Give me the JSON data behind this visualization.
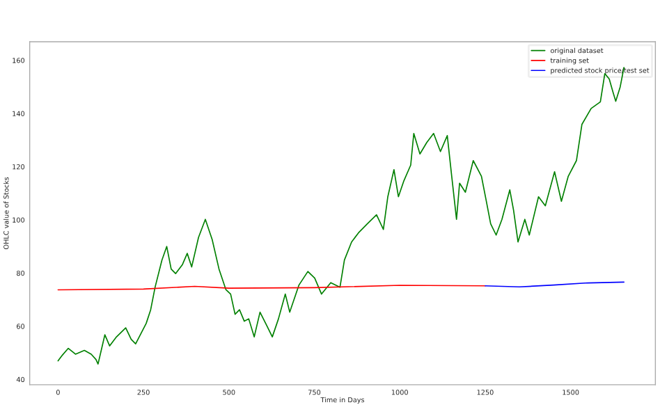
{
  "chart_data": {
    "type": "line",
    "xlabel": "Time in Days",
    "ylabel": "OHLC value of Stocks",
    "xlim": [
      -83,
      1748
    ],
    "ylim": [
      38,
      167
    ],
    "xticks": [
      0,
      250,
      500,
      750,
      1000,
      1250,
      1500
    ],
    "yticks": [
      40,
      60,
      80,
      100,
      120,
      140,
      160
    ],
    "grid": false,
    "legend": "top right",
    "marker": "none",
    "line_style": "solid",
    "series": [
      {
        "name": "original dataset",
        "color": "#008000",
        "x": [
          0,
          13,
          30,
          51,
          77,
          97,
          111,
          117,
          137,
          151,
          171,
          198,
          214,
          227,
          258,
          271,
          284,
          304,
          318,
          331,
          344,
          364,
          378,
          391,
          411,
          431,
          451,
          471,
          491,
          505,
          518,
          531,
          545,
          558,
          574,
          591,
          611,
          627,
          645,
          665,
          678,
          705,
          731,
          751,
          771,
          798,
          825,
          838,
          859,
          879,
          905,
          932,
          952,
          965,
          983,
          996,
          1012,
          1032,
          1041,
          1059,
          1079,
          1099,
          1119,
          1139,
          1152,
          1166,
          1175,
          1192,
          1215,
          1239,
          1252,
          1266,
          1282,
          1299,
          1322,
          1333,
          1346,
          1366,
          1379,
          1406,
          1426,
          1453,
          1473,
          1493,
          1517,
          1533,
          1560,
          1587,
          1600,
          1613,
          1624,
          1632,
          1645,
          1656
        ],
        "values": [
          47,
          49.2,
          51.7,
          49.5,
          50.9,
          49.5,
          47.5,
          45.8,
          56.8,
          52.6,
          56,
          59.4,
          55.1,
          53.4,
          61.1,
          66.2,
          74.7,
          84.9,
          90,
          81.5,
          79.8,
          83.2,
          87.4,
          82.3,
          93.4,
          100.2,
          92.6,
          81.5,
          73.8,
          72.1,
          64.5,
          66.2,
          61.9,
          62.8,
          56,
          65.3,
          60.2,
          56,
          62.8,
          72.1,
          65.3,
          75.5,
          80.6,
          78.1,
          72.1,
          76.4,
          74.7,
          84.9,
          91.7,
          95.1,
          98.5,
          101.9,
          96.4,
          108.7,
          118.9,
          108.7,
          114.7,
          120.6,
          132.5,
          124.8,
          129.1,
          132.5,
          125.7,
          131.7,
          116.4,
          100.2,
          113.8,
          110.4,
          122.3,
          116.4,
          107.9,
          98.5,
          94.3,
          100.2,
          111.3,
          103.6,
          91.7,
          100.2,
          94.3,
          108.7,
          105.3,
          118.1,
          107,
          116.4,
          122.3,
          135.9,
          141.9,
          144.4,
          155,
          153,
          148,
          144.6,
          150,
          157.3
        ]
      },
      {
        "name": "training set",
        "color": "#ff0000",
        "x": [
          0,
          250,
          400,
          500,
          750,
          1000,
          1250
        ],
        "values": [
          73.7,
          74,
          75,
          74.3,
          74.5,
          75.4,
          75.2
        ]
      },
      {
        "name": "predicted stock price/test set",
        "color": "#0000ff",
        "x": [
          1250,
          1350,
          1450,
          1550,
          1656
        ],
        "values": [
          75.2,
          74.8,
          75.5,
          76.3,
          76.6
        ]
      }
    ]
  }
}
